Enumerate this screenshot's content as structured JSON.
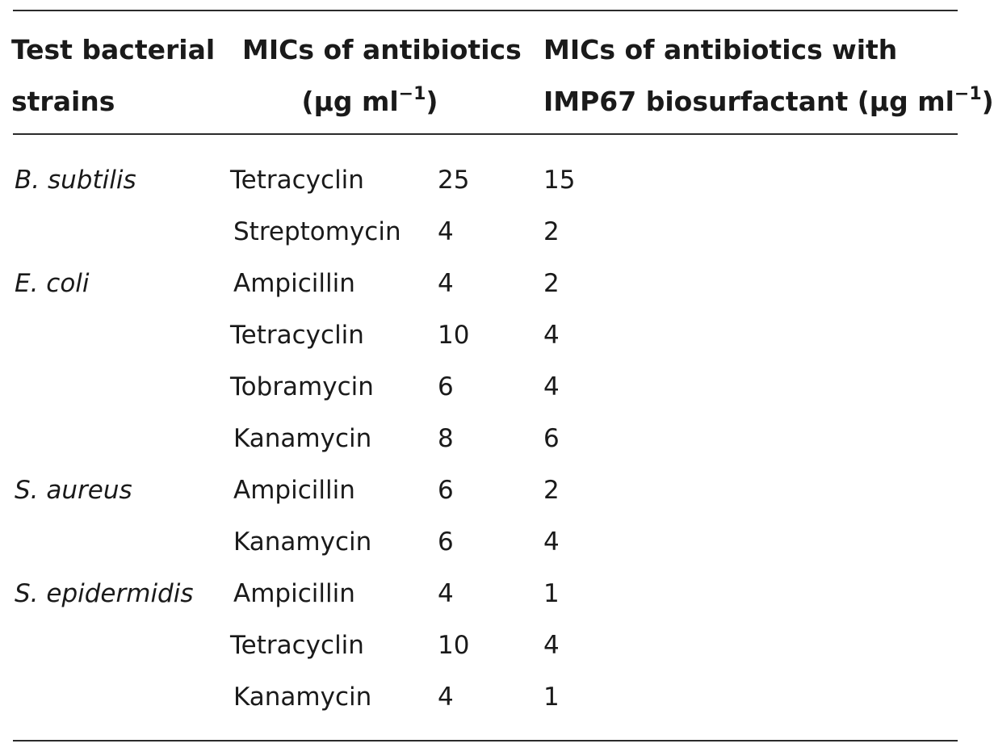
{
  "table": {
    "headers": {
      "strain_line1": "Test bacterial",
      "strain_line2": "strains",
      "mic_line1": "MICs of antibiotics",
      "mic_line2_prefix": "(µg ml",
      "mic_line2_sup": "−1",
      "mic_line2_suffix": ")",
      "mic_bio_line1": "MICs of antibiotics with",
      "mic_bio_line2_prefix": "IMP67 biosurfactant (µg ml",
      "mic_bio_line2_sup": "−1",
      "mic_bio_line2_suffix": ")"
    },
    "rows": [
      {
        "strain": "B. subtilis",
        "antibiotic": "Tetracyclin",
        "mic": "25",
        "mic_bio": "15"
      },
      {
        "strain": "",
        "antibiotic": "Streptomycin",
        "mic": "4",
        "mic_bio": "2"
      },
      {
        "strain": "E. coli",
        "antibiotic": "Ampicillin",
        "mic": "4",
        "mic_bio": "2"
      },
      {
        "strain": "",
        "antibiotic": "Tetracyclin",
        "mic": "10",
        "mic_bio": "4"
      },
      {
        "strain": "",
        "antibiotic": "Tobramycin",
        "mic": "6",
        "mic_bio": "4"
      },
      {
        "strain": "",
        "antibiotic": "Kanamycin",
        "mic": "8",
        "mic_bio": "6"
      },
      {
        "strain": "S. aureus",
        "antibiotic": "Ampicillin",
        "mic": "6",
        "mic_bio": "2"
      },
      {
        "strain": "",
        "antibiotic": "Kanamycin",
        "mic": "6",
        "mic_bio": "4"
      },
      {
        "strain": "S. epidermidis",
        "antibiotic": "Ampicillin",
        "mic": "4",
        "mic_bio": "1"
      },
      {
        "strain": "",
        "antibiotic": "Tetracyclin",
        "mic": "10",
        "mic_bio": "4"
      },
      {
        "strain": "",
        "antibiotic": "Kanamycin",
        "mic": "4",
        "mic_bio": "1"
      }
    ]
  }
}
